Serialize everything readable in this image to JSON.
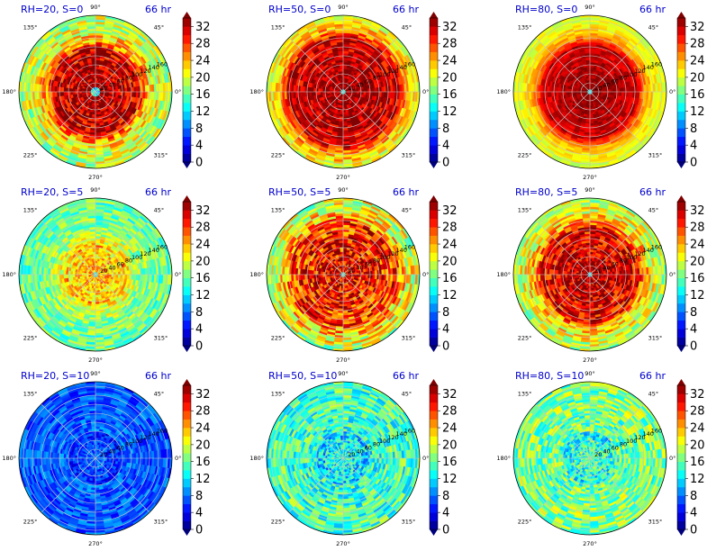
{
  "figure": {
    "panels": [
      {
        "title": "RH=20, S=0",
        "time": "66 hr"
      },
      {
        "title": "RH=50, S=0",
        "time": "66 hr"
      },
      {
        "title": "RH=80, S=0",
        "time": "66 hr"
      },
      {
        "title": "RH=20, S=5",
        "time": "66 hr"
      },
      {
        "title": "RH=50, S=5",
        "time": "66 hr"
      },
      {
        "title": "RH=80, S=5",
        "time": "66 hr"
      },
      {
        "title": "RH=20, S=10",
        "time": "66 hr"
      },
      {
        "title": "RH=50, S=10",
        "time": "66 hr"
      },
      {
        "title": "RH=80, S=10",
        "time": "66 hr"
      }
    ],
    "angle_labels": [
      "90°",
      "45°",
      "0°",
      "315°",
      "270°",
      "225°",
      "180°",
      "135°"
    ],
    "radial_ticks": [
      20,
      40,
      60,
      80,
      100,
      120,
      140,
      160
    ],
    "colorbar_ticks": [
      0,
      4,
      8,
      12,
      16,
      20,
      24,
      28,
      32
    ],
    "colormap": "jet",
    "colormap_stops": [
      "#00007f",
      "#0000ff",
      "#007fff",
      "#00ffff",
      "#7fff7f",
      "#ffff00",
      "#ff7f00",
      "#ff0000",
      "#7f0000"
    ]
  },
  "chart_data": [
    {
      "type": "heatmap",
      "projection": "polar",
      "title": "RH=20, S=0",
      "annotation": "66 hr",
      "r_ticks": [
        20,
        40,
        60,
        80,
        100,
        120,
        140,
        160
      ],
      "theta_ticks_deg": [
        0,
        45,
        90,
        135,
        180,
        225,
        270,
        315
      ],
      "clim": [
        0,
        34
      ],
      "colorbar_ticks": [
        0,
        4,
        8,
        12,
        16,
        20,
        24,
        28,
        32
      ],
      "colormap": "jet",
      "eye_radius": 12,
      "core_value": 34,
      "outer_value": 18,
      "core_radius": 90,
      "rainband_amplitude": 5
    },
    {
      "type": "heatmap",
      "projection": "polar",
      "title": "RH=50, S=0",
      "annotation": "66 hr",
      "r_ticks": [
        20,
        40,
        60,
        80,
        100,
        120,
        140,
        160
      ],
      "theta_ticks_deg": [
        0,
        45,
        90,
        135,
        180,
        225,
        270,
        315
      ],
      "clim": [
        0,
        34
      ],
      "colorbar_ticks": [
        0,
        4,
        8,
        12,
        16,
        20,
        24,
        28,
        32
      ],
      "colormap": "jet",
      "eye_radius": 6,
      "core_value": 34,
      "outer_value": 19,
      "core_radius": 115,
      "rainband_amplitude": 4
    },
    {
      "type": "heatmap",
      "projection": "polar",
      "title": "RH=80, S=0",
      "annotation": "66 hr",
      "r_ticks": [
        20,
        40,
        60,
        80,
        100,
        120,
        140,
        160
      ],
      "theta_ticks_deg": [
        0,
        45,
        90,
        135,
        180,
        225,
        270,
        315
      ],
      "clim": [
        0,
        34
      ],
      "colorbar_ticks": [
        0,
        4,
        8,
        12,
        16,
        20,
        24,
        28,
        32
      ],
      "colormap": "jet",
      "eye_radius": 4,
      "core_value": 34,
      "outer_value": 19,
      "core_radius": 100,
      "rainband_amplitude": 2
    },
    {
      "type": "heatmap",
      "projection": "polar",
      "title": "RH=20, S=5",
      "annotation": "66 hr",
      "r_ticks": [
        20,
        40,
        60,
        80,
        100,
        120,
        140,
        160
      ],
      "theta_ticks_deg": [
        0,
        45,
        90,
        135,
        180,
        225,
        270,
        315
      ],
      "clim": [
        0,
        34
      ],
      "colorbar_ticks": [
        0,
        4,
        8,
        12,
        16,
        20,
        24,
        28,
        32
      ],
      "colormap": "jet",
      "eye_radius": 5,
      "core_value": 25,
      "outer_value": 16,
      "core_radius": 60,
      "rainband_amplitude": 4
    },
    {
      "type": "heatmap",
      "projection": "polar",
      "title": "RH=50, S=5",
      "annotation": "66 hr",
      "r_ticks": [
        20,
        40,
        60,
        80,
        100,
        120,
        140,
        160
      ],
      "theta_ticks_deg": [
        0,
        45,
        90,
        135,
        180,
        225,
        270,
        315
      ],
      "clim": [
        0,
        34
      ],
      "colorbar_ticks": [
        0,
        4,
        8,
        12,
        16,
        20,
        24,
        28,
        32
      ],
      "colormap": "jet",
      "eye_radius": 7,
      "core_value": 31,
      "outer_value": 18,
      "core_radius": 110,
      "rainband_amplitude": 6
    },
    {
      "type": "heatmap",
      "projection": "polar",
      "title": "RH=80, S=5",
      "annotation": "66 hr",
      "r_ticks": [
        20,
        40,
        60,
        80,
        100,
        120,
        140,
        160
      ],
      "theta_ticks_deg": [
        0,
        45,
        90,
        135,
        180,
        225,
        270,
        315
      ],
      "clim": [
        0,
        34
      ],
      "colorbar_ticks": [
        0,
        4,
        8,
        12,
        16,
        20,
        24,
        28,
        32
      ],
      "colormap": "jet",
      "eye_radius": 5,
      "core_value": 33,
      "outer_value": 18,
      "core_radius": 100,
      "rainband_amplitude": 5
    },
    {
      "type": "heatmap",
      "projection": "polar",
      "title": "RH=20, S=10",
      "annotation": "66 hr",
      "r_ticks": [
        20,
        40,
        60,
        80,
        100,
        120,
        140,
        160
      ],
      "theta_ticks_deg": [
        0,
        45,
        90,
        135,
        180,
        225,
        270,
        315
      ],
      "clim": [
        0,
        34
      ],
      "colorbar_ticks": [
        0,
        4,
        8,
        12,
        16,
        20,
        24,
        28,
        32
      ],
      "colormap": "jet",
      "eye_radius": 0,
      "core_value": 8,
      "outer_value": 7,
      "core_radius": 60,
      "rainband_amplitude": 3
    },
    {
      "type": "heatmap",
      "projection": "polar",
      "title": "RH=50, S=10",
      "annotation": "66 hr",
      "r_ticks": [
        20,
        40,
        60,
        80,
        100,
        120,
        140,
        160
      ],
      "theta_ticks_deg": [
        0,
        45,
        90,
        135,
        180,
        225,
        270,
        315
      ],
      "clim": [
        0,
        34
      ],
      "colorbar_ticks": [
        0,
        4,
        8,
        12,
        16,
        20,
        24,
        28,
        32
      ],
      "colormap": "jet",
      "eye_radius": 0,
      "core_value": 14,
      "outer_value": 15,
      "core_radius": 60,
      "rainband_amplitude": 5
    },
    {
      "type": "heatmap",
      "projection": "polar",
      "title": "RH=80, S=10",
      "annotation": "66 hr",
      "r_ticks": [
        20,
        40,
        60,
        80,
        100,
        120,
        140,
        160
      ],
      "theta_ticks_deg": [
        0,
        45,
        90,
        135,
        180,
        225,
        270,
        315
      ],
      "clim": [
        0,
        34
      ],
      "colorbar_ticks": [
        0,
        4,
        8,
        12,
        16,
        20,
        24,
        28,
        32
      ],
      "colormap": "jet",
      "eye_radius": 0,
      "core_value": 16,
      "outer_value": 17,
      "core_radius": 60,
      "rainband_amplitude": 5
    }
  ]
}
